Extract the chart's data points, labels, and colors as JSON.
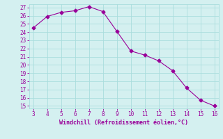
{
  "x": [
    3,
    4,
    5,
    6,
    7,
    8,
    9,
    10,
    11,
    12,
    13,
    14,
    15,
    16
  ],
  "y": [
    24.5,
    25.9,
    26.4,
    26.6,
    27.1,
    26.5,
    24.1,
    21.7,
    21.2,
    20.5,
    19.3,
    17.2,
    15.7,
    15.0
  ],
  "line_color": "#990099",
  "marker": "D",
  "marker_size": 2.5,
  "xlabel": "Windchill (Refroidissement éolien,°C)",
  "xlim": [
    3,
    16
  ],
  "ylim": [
    15,
    27
  ],
  "xticks": [
    3,
    4,
    5,
    6,
    7,
    8,
    9,
    10,
    11,
    12,
    13,
    14,
    15,
    16
  ],
  "yticks": [
    15,
    16,
    17,
    18,
    19,
    20,
    21,
    22,
    23,
    24,
    25,
    26,
    27
  ],
  "bg_color": "#d4f0f0",
  "grid_color": "#aadddd",
  "tick_color": "#990099",
  "label_color": "#990099",
  "tick_fontsize": 5.5,
  "label_fontsize": 6.0,
  "linewidth": 0.8
}
